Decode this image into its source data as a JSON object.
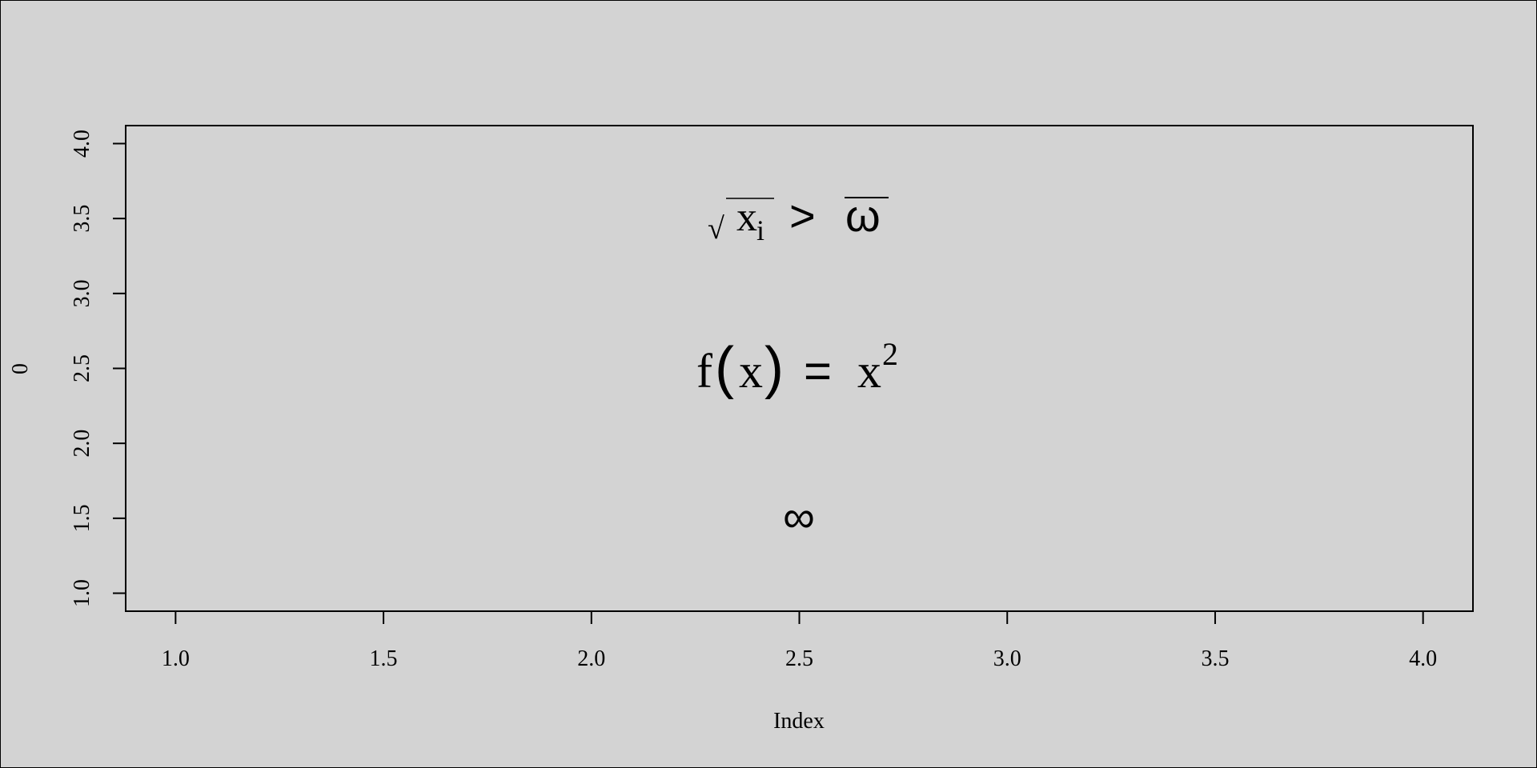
{
  "chart_data": {
    "type": "scatter",
    "title": "",
    "xlabel": "Index",
    "ylabel": "0",
    "xlim": [
      0.88,
      4.12
    ],
    "ylim": [
      0.88,
      4.12
    ],
    "x_ticks": [
      "1.0",
      "1.5",
      "2.0",
      "2.5",
      "3.0",
      "3.5",
      "4.0"
    ],
    "y_ticks": [
      "1.0",
      "1.5",
      "2.0",
      "2.5",
      "3.0",
      "3.5",
      "4.0"
    ],
    "grid": false,
    "legend": "none",
    "background_color": "#d3d3d3",
    "foreground_color": "#000000",
    "annotations": [
      {
        "x": 2.5,
        "y": 3.5,
        "parts": {
          "radical": "√",
          "base": "x",
          "subscript": "i",
          "operator": ">",
          "overlined": "ω"
        }
      },
      {
        "x": 2.5,
        "y": 2.5,
        "parts": {
          "func": "f",
          "open": "(",
          "arg": "x",
          "close": ")",
          "equals": "=",
          "base": "x",
          "exponent": "2"
        }
      },
      {
        "x": 2.5,
        "y": 1.5,
        "parts": {
          "symbol": "∞"
        }
      }
    ]
  }
}
